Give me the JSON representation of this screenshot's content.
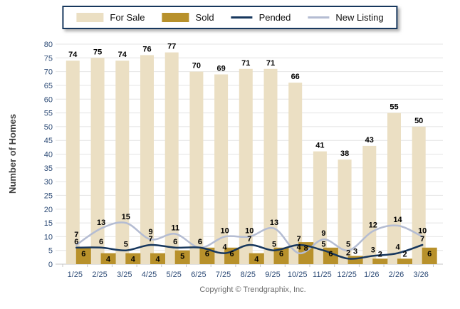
{
  "legend": {
    "items": [
      {
        "label": "For Sale",
        "type": "bar",
        "color": "#ebdfc3"
      },
      {
        "label": "Sold",
        "type": "bar",
        "color": "#b8912b"
      },
      {
        "label": "Pended",
        "type": "line",
        "color": "#17375d"
      },
      {
        "label": "New Listing",
        "type": "line",
        "color": "#b4bcd2"
      }
    ]
  },
  "chart_data": {
    "type": "bar+line",
    "categories": [
      "1/25",
      "2/25",
      "3/25",
      "4/25",
      "5/25",
      "6/25",
      "7/25",
      "8/25",
      "9/25",
      "10/25",
      "11/25",
      "12/25",
      "1/26",
      "2/26",
      "3/26"
    ],
    "series": [
      {
        "name": "For Sale",
        "type": "bar",
        "color": "#ebdfc3",
        "values": [
          74,
          75,
          74,
          76,
          77,
          70,
          69,
          71,
          71,
          66,
          41,
          38,
          43,
          55,
          50
        ]
      },
      {
        "name": "Sold",
        "type": "bar",
        "color": "#b8912b",
        "values": [
          6,
          4,
          4,
          4,
          5,
          6,
          6,
          4,
          6,
          8,
          6,
          3,
          2,
          2,
          6
        ]
      },
      {
        "name": "Pended",
        "type": "line",
        "color": "#17375d",
        "values": [
          6,
          6,
          5,
          7,
          6,
          6,
          4,
          7,
          5,
          7,
          5,
          2,
          3,
          4,
          7
        ]
      },
      {
        "name": "New Listing",
        "type": "line",
        "color": "#b4bcd2",
        "values": [
          7,
          13,
          15,
          9,
          11,
          6,
          10,
          10,
          13,
          4,
          9,
          5,
          12,
          14,
          10
        ]
      }
    ],
    "title": "",
    "xlabel": "",
    "ylabel": "Number of Homes",
    "ylim": [
      0,
      80
    ],
    "ytick_step": 5,
    "yticks": [
      0,
      5,
      10,
      15,
      20,
      25,
      30,
      35,
      40,
      45,
      50,
      55,
      60,
      65,
      70,
      75,
      80
    ],
    "grid": true,
    "legend_position": "top-center",
    "colors": {
      "grid_line": "#e4e4e4",
      "axis_line": "#c6c6c6",
      "tick_label": "#2e4c77",
      "data_label": "#000000",
      "ylabel_text": "#404040"
    }
  },
  "footer": {
    "copyright": "Copyright © Trendgraphix, Inc."
  }
}
